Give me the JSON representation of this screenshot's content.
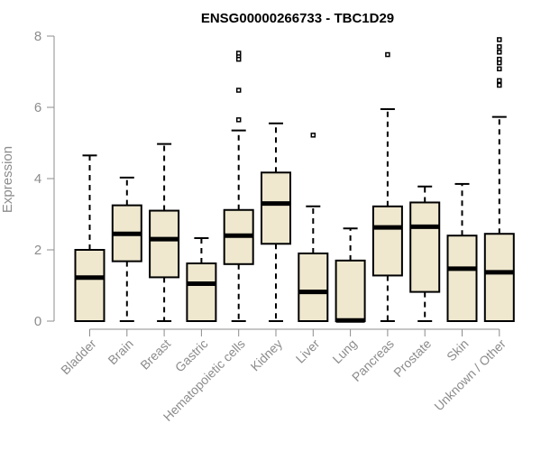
{
  "chart_data": {
    "type": "boxplot",
    "title": "ENSG00000266733 - TBC1D29",
    "ylabel": "Expression",
    "xlabel": "",
    "ylim": [
      0,
      8
    ],
    "yticks": [
      0,
      2,
      4,
      6,
      8
    ],
    "categories": [
      "Bladder",
      "Brain",
      "Breast",
      "Gastric",
      "Hematopoietic cells",
      "Kidney",
      "Liver",
      "Lung",
      "Pancreas",
      "Prostate",
      "Skin",
      "Unknown / Other"
    ],
    "boxes": [
      {
        "category": "Bladder",
        "whisker_low": 0,
        "q1": 0,
        "median": 1.22,
        "q3": 2.0,
        "whisker_high": 4.65,
        "outliers": []
      },
      {
        "category": "Brain",
        "whisker_low": 0,
        "q1": 1.68,
        "median": 2.45,
        "q3": 3.25,
        "whisker_high": 4.03,
        "outliers": []
      },
      {
        "category": "Breast",
        "whisker_low": 0,
        "q1": 1.23,
        "median": 2.3,
        "q3": 3.1,
        "whisker_high": 4.97,
        "outliers": []
      },
      {
        "category": "Gastric",
        "whisker_low": 0,
        "q1": 0,
        "median": 1.05,
        "q3": 1.62,
        "whisker_high": 2.33,
        "outliers": []
      },
      {
        "category": "Hematopoietic cells",
        "whisker_low": 0,
        "q1": 1.6,
        "median": 2.4,
        "q3": 3.12,
        "whisker_high": 5.35,
        "outliers": [
          5.65,
          6.48,
          7.35,
          7.45,
          7.52
        ]
      },
      {
        "category": "Kidney",
        "whisker_low": 0,
        "q1": 2.17,
        "median": 3.3,
        "q3": 4.17,
        "whisker_high": 5.55,
        "outliers": []
      },
      {
        "category": "Liver",
        "whisker_low": 0,
        "q1": 0,
        "median": 0.82,
        "q3": 1.9,
        "whisker_high": 3.22,
        "outliers": [
          5.22
        ]
      },
      {
        "category": "Lung",
        "whisker_low": 0,
        "q1": 0,
        "median": 0.02,
        "q3": 1.7,
        "whisker_high": 2.6,
        "outliers": []
      },
      {
        "category": "Pancreas",
        "whisker_low": 0,
        "q1": 1.28,
        "median": 2.63,
        "q3": 3.22,
        "whisker_high": 5.95,
        "outliers": [
          7.48
        ]
      },
      {
        "category": "Prostate",
        "whisker_low": 0,
        "q1": 0.82,
        "median": 2.65,
        "q3": 3.33,
        "whisker_high": 3.78,
        "outliers": []
      },
      {
        "category": "Skin",
        "whisker_low": 0,
        "q1": 0,
        "median": 1.47,
        "q3": 2.4,
        "whisker_high": 3.85,
        "outliers": []
      },
      {
        "category": "Unknown / Other",
        "whisker_low": 0,
        "q1": 0,
        "median": 1.37,
        "q3": 2.45,
        "whisker_high": 5.73,
        "outliers": [
          6.62,
          6.75,
          7.08,
          7.25,
          7.35,
          7.55,
          7.7,
          7.9
        ]
      }
    ],
    "colors": {
      "box_fill": "#efe8cf",
      "box_stroke": "#000000",
      "axis": "#8c8c8c",
      "label": "#8c8c8c"
    },
    "grid": false,
    "legend": "none"
  }
}
